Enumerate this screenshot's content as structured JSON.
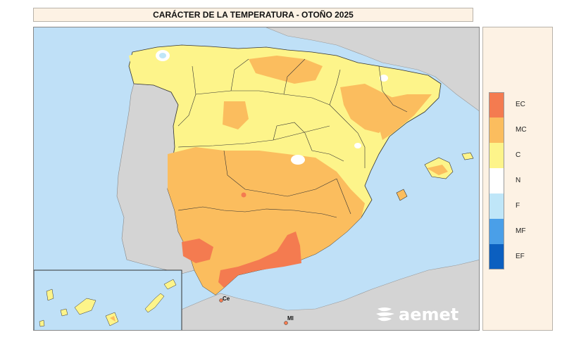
{
  "title": "CARÁCTER DE LA TEMPERATURA - OTOÑO 2025",
  "legend": [
    {
      "code": "EC",
      "color": "#f47b50"
    },
    {
      "code": "MC",
      "color": "#fbbd5e"
    },
    {
      "code": "C",
      "color": "#fdf48a"
    },
    {
      "code": "N",
      "color": "#ffffff"
    },
    {
      "code": "F",
      "color": "#bfe6f8"
    },
    {
      "code": "MF",
      "color": "#4a9fe8"
    },
    {
      "code": "EF",
      "color": "#0b5fc0"
    }
  ],
  "labels": {
    "ceuta": "Ce",
    "melilla": "Ml"
  },
  "logo": {
    "text": "aemet",
    "icon": "aemet-logo-icon"
  },
  "colors": {
    "sea": "#bfe0f7",
    "land_other": "#d4d4d4",
    "border": "#222222"
  }
}
